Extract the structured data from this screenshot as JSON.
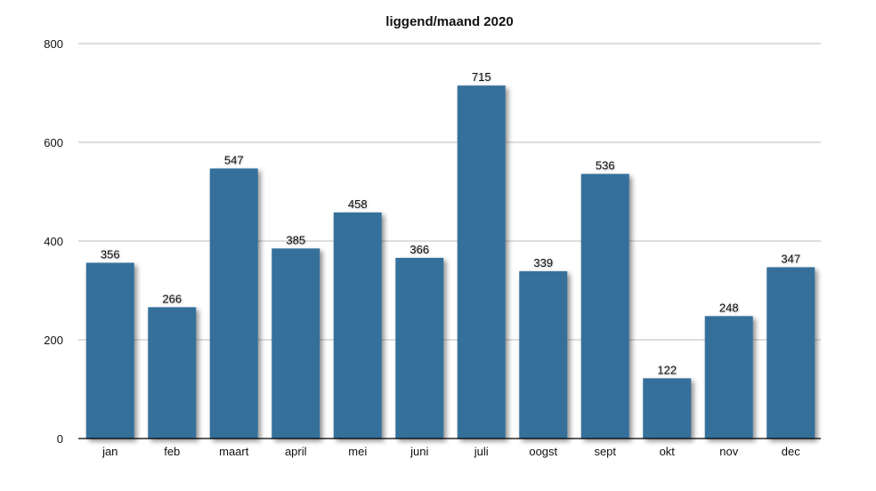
{
  "chart_data": {
    "type": "bar",
    "title": "liggend/maand 2020",
    "xlabel": "",
    "ylabel": "",
    "categories": [
      "jan",
      "feb",
      "maart",
      "april",
      "mei",
      "juni",
      "juli",
      "oogst",
      "sept",
      "okt",
      "nov",
      "dec"
    ],
    "values": [
      356,
      266,
      547,
      385,
      458,
      366,
      715,
      339,
      536,
      122,
      248,
      347
    ],
    "ylim": [
      0,
      800
    ],
    "yticks": [
      0,
      200,
      400,
      600,
      800
    ],
    "grid": true,
    "legend": "none",
    "bar_color": "#356f9b",
    "grid_color": "#bdbdbd",
    "axis_color": "#000000"
  }
}
